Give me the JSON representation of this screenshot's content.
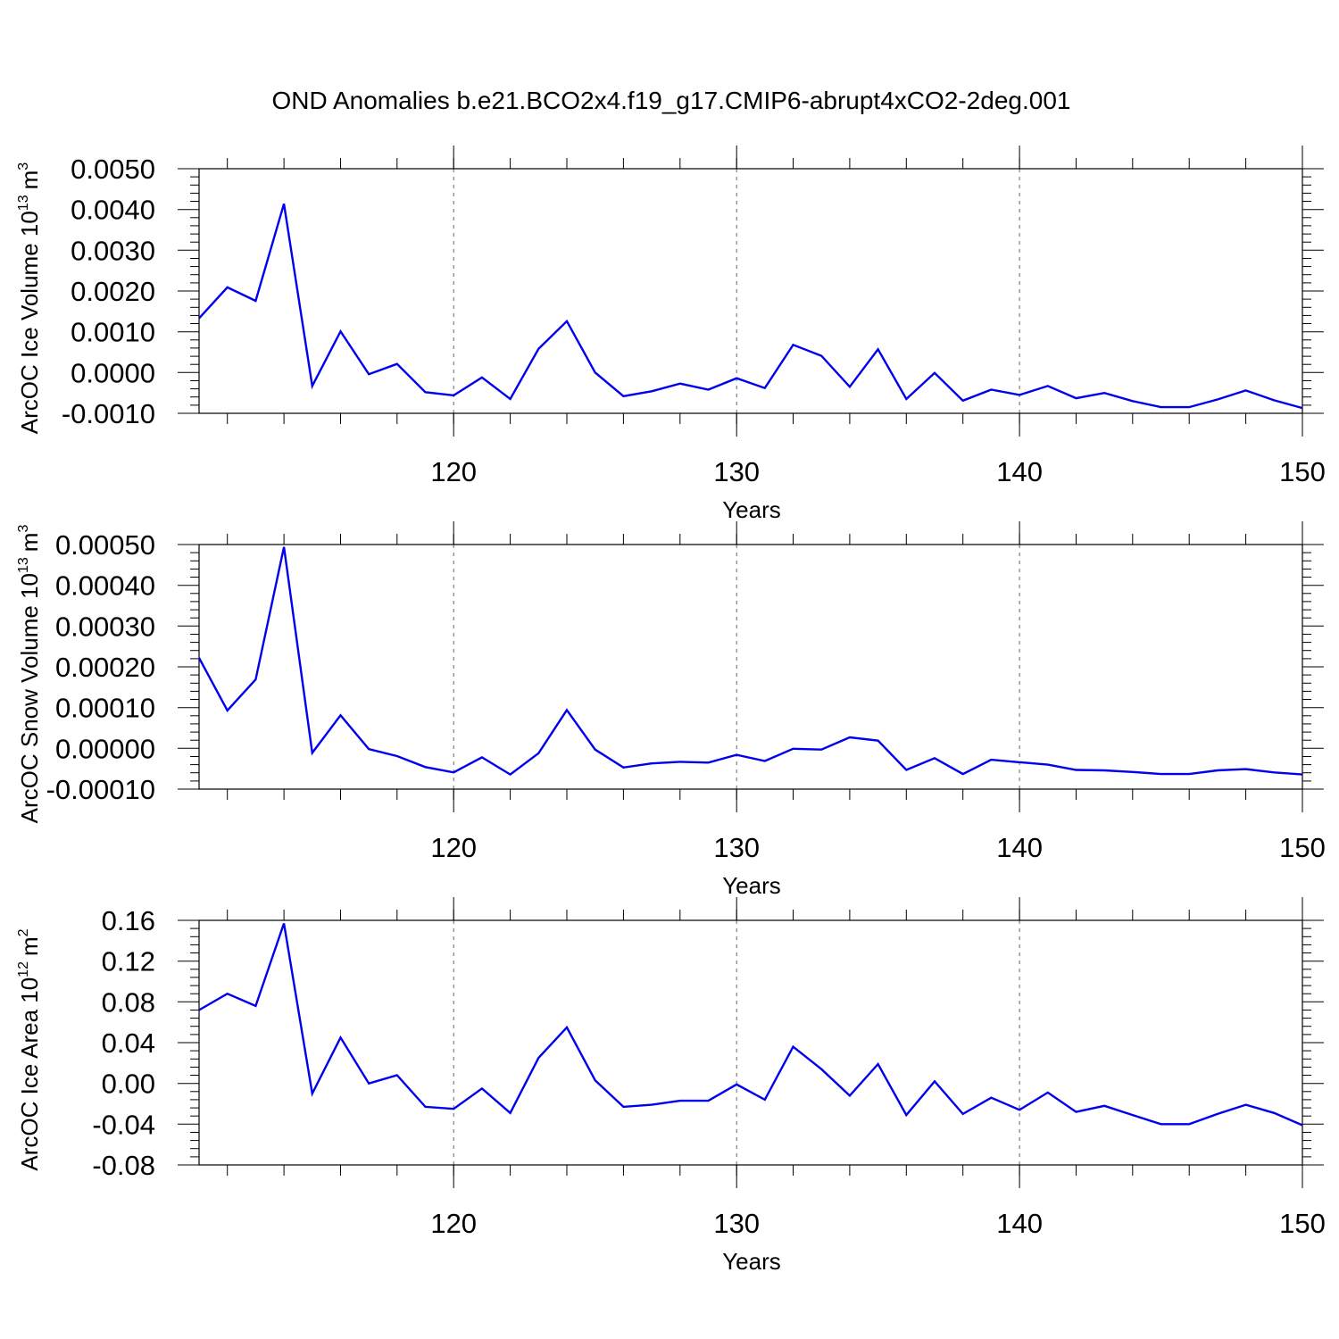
{
  "figure": {
    "title": "OND Anomalies b.e21.BCO2x4.f19_g17.CMIP6-abrupt4xCO2-2deg.001"
  },
  "chart_data": [
    {
      "type": "line",
      "xlabel": "Years",
      "ylabel_main": "ArcOC Ice Volume 10",
      "ylabel_exp": "13",
      "ylabel_unit": "m",
      "ylabel_unit_exp": "3",
      "xlim": [
        111,
        150
      ],
      "ylim": [
        -0.001,
        0.005
      ],
      "x_ticks": [
        120,
        130,
        140,
        150
      ],
      "x_tick_labels": [
        "120",
        "130",
        "140",
        "150"
      ],
      "y_ticks": [
        -0.001,
        0,
        0.001,
        0.002,
        0.003,
        0.004,
        0.005
      ],
      "y_tick_labels": [
        "-0.0010",
        "0.0000",
        "0.0010",
        "0.0020",
        "0.0030",
        "0.0040",
        "0.0050"
      ],
      "grid": "vertical-dashed-at-major-x",
      "line_color": "#0000ee",
      "series": [
        {
          "x": [
            111,
            112,
            113,
            114,
            115,
            116,
            117,
            118,
            119,
            120,
            121,
            122,
            123,
            124,
            125,
            126,
            127,
            128,
            129,
            130,
            131,
            132,
            133,
            134,
            135,
            136,
            137,
            138,
            139,
            140,
            141,
            142,
            143,
            144,
            145,
            146,
            147,
            148,
            149,
            150
          ],
          "values": [
            0.00133,
            0.00209,
            0.00176,
            0.00414,
            -0.00033,
            0.00101,
            -4e-05,
            0.00021,
            -0.00048,
            -0.00056,
            -0.00012,
            -0.00065,
            0.00058,
            0.00126,
            0.0,
            -0.00058,
            -0.00046,
            -0.00027,
            -0.00042,
            -0.00014,
            -0.00038,
            0.00068,
            0.00041,
            -0.00035,
            0.00057,
            -0.00065,
            -1e-05,
            -0.00069,
            -0.00042,
            -0.00055,
            -0.00033,
            -0.00063,
            -0.0005,
            -0.0007,
            -0.00085,
            -0.00085,
            -0.00066,
            -0.00044,
            -0.00068,
            -0.00087
          ]
        }
      ]
    },
    {
      "type": "line",
      "xlabel": "Years",
      "ylabel_main": "ArcOC Snow Volume 10",
      "ylabel_exp": "13",
      "ylabel_unit": "m",
      "ylabel_unit_exp": "3",
      "xlim": [
        111,
        150
      ],
      "ylim": [
        -0.0001,
        0.0005
      ],
      "x_ticks": [
        120,
        130,
        140,
        150
      ],
      "x_tick_labels": [
        "120",
        "130",
        "140",
        "150"
      ],
      "y_ticks": [
        -0.0001,
        0,
        0.0001,
        0.0002,
        0.0003,
        0.0004,
        0.0005
      ],
      "y_tick_labels": [
        "-0.00010",
        "0.00000",
        "0.00010",
        "0.00020",
        "0.00030",
        "0.00040",
        "0.00050"
      ],
      "grid": "vertical-dashed-at-major-x",
      "line_color": "#0000ee",
      "series": [
        {
          "x": [
            111,
            112,
            113,
            114,
            115,
            116,
            117,
            118,
            119,
            120,
            121,
            122,
            123,
            124,
            125,
            126,
            127,
            128,
            129,
            130,
            131,
            132,
            133,
            134,
            135,
            136,
            137,
            138,
            139,
            140,
            141,
            142,
            143,
            144,
            145,
            146,
            147,
            148,
            149,
            150
          ],
          "values": [
            0.000222,
            9.3e-05,
            0.000169,
            0.000494,
            -1.1e-05,
            8.1e-05,
            -2e-06,
            -1.9e-05,
            -4.6e-05,
            -5.9e-05,
            -2.2e-05,
            -6.4e-05,
            -1.2e-05,
            9.4e-05,
            -3e-06,
            -4.7e-05,
            -3.7e-05,
            -3.3e-05,
            -3.5e-05,
            -1.6e-05,
            -3.1e-05,
            -1e-06,
            -3e-06,
            2.7e-05,
            1.9e-05,
            -5.3e-05,
            -2.4e-05,
            -6.3e-05,
            -2.8e-05,
            -3.4e-05,
            -4e-05,
            -5.3e-05,
            -5.4e-05,
            -5.8e-05,
            -6.3e-05,
            -6.3e-05,
            -5.4e-05,
            -5.1e-05,
            -5.9e-05,
            -6.4e-05
          ]
        }
      ]
    },
    {
      "type": "line",
      "xlabel": "Years",
      "ylabel_main": "ArcOC Ice Area 10",
      "ylabel_exp": "12",
      "ylabel_unit": "m",
      "ylabel_unit_exp": "2",
      "xlim": [
        111,
        150
      ],
      "ylim": [
        -0.08,
        0.16
      ],
      "x_ticks": [
        120,
        130,
        140,
        150
      ],
      "x_tick_labels": [
        "120",
        "130",
        "140",
        "150"
      ],
      "y_ticks": [
        -0.08,
        -0.04,
        0,
        0.04,
        0.08,
        0.12,
        0.16
      ],
      "y_tick_labels": [
        "-0.08",
        "-0.04",
        "0.00",
        "0.04",
        "0.08",
        "0.12",
        "0.16"
      ],
      "grid": "vertical-dashed-at-major-x",
      "line_color": "#0000ee",
      "series": [
        {
          "x": [
            111,
            112,
            113,
            114,
            115,
            116,
            117,
            118,
            119,
            120,
            121,
            122,
            123,
            124,
            125,
            126,
            127,
            128,
            129,
            130,
            131,
            132,
            133,
            134,
            135,
            136,
            137,
            138,
            139,
            140,
            141,
            142,
            143,
            144,
            145,
            146,
            147,
            148,
            149,
            150
          ],
          "values": [
            0.072,
            0.088,
            0.076,
            0.157,
            -0.01,
            0.045,
            0.0,
            0.008,
            -0.023,
            -0.025,
            -0.005,
            -0.029,
            0.025,
            0.055,
            0.003,
            -0.023,
            -0.021,
            -0.017,
            -0.017,
            -0.001,
            -0.016,
            0.036,
            0.014,
            -0.012,
            0.019,
            -0.031,
            0.002,
            -0.03,
            -0.014,
            -0.026,
            -0.009,
            -0.028,
            -0.022,
            -0.031,
            -0.04,
            -0.04,
            -0.03,
            -0.021,
            -0.029,
            -0.041
          ]
        }
      ]
    }
  ]
}
